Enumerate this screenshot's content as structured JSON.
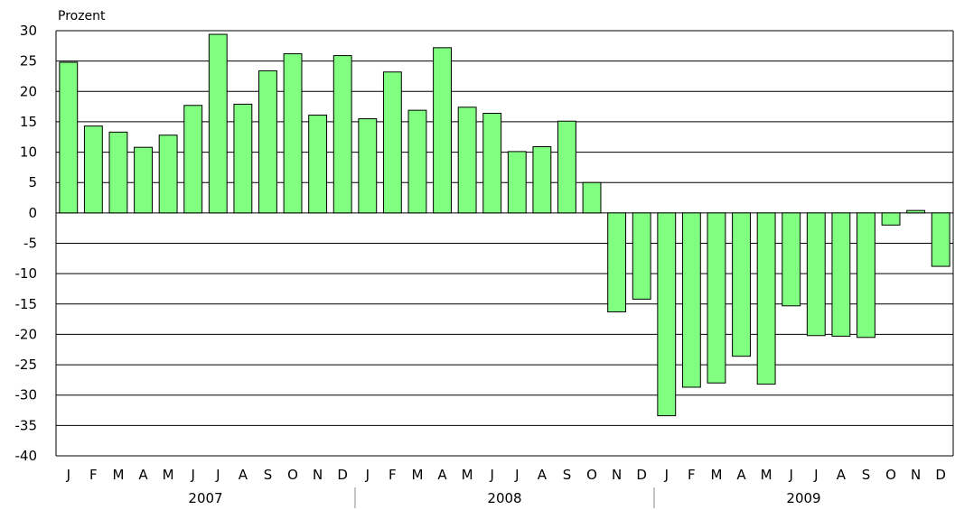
{
  "chart_data": {
    "type": "bar",
    "ylabel": "Prozent",
    "ylim": [
      -40,
      30
    ],
    "yticks": [
      30,
      25,
      20,
      15,
      10,
      5,
      0,
      -5,
      -10,
      -15,
      -20,
      -25,
      -30,
      -35,
      -40
    ],
    "grid": true,
    "categories": [
      "J",
      "F",
      "M",
      "A",
      "M",
      "J",
      "J",
      "A",
      "S",
      "O",
      "N",
      "D",
      "J",
      "F",
      "M",
      "A",
      "M",
      "J",
      "J",
      "A",
      "S",
      "O",
      "N",
      "D",
      "J",
      "F",
      "M",
      "A",
      "M",
      "J",
      "J",
      "A",
      "S",
      "O",
      "N",
      "D"
    ],
    "years": [
      "2007",
      "2008",
      "2009"
    ],
    "values": [
      24.8,
      14.3,
      13.3,
      10.8,
      12.8,
      17.7,
      29.4,
      17.9,
      23.4,
      26.2,
      16.1,
      25.9,
      15.5,
      23.2,
      16.9,
      27.2,
      17.4,
      16.4,
      10.1,
      10.9,
      15.1,
      5.0,
      -16.3,
      -14.2,
      -33.4,
      -28.7,
      -28.0,
      -23.6,
      -28.2,
      -15.3,
      -20.2,
      -20.3,
      -20.5,
      -2.0,
      0.4,
      -8.8
    ],
    "bar_color": "#80ff80",
    "bar_stroke": "#000000"
  }
}
